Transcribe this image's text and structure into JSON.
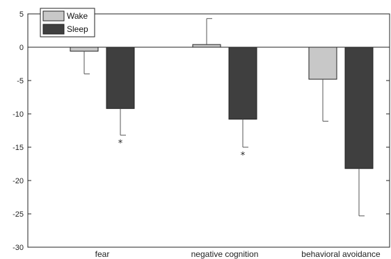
{
  "chart_data": {
    "type": "bar",
    "categories": [
      "fear",
      "negative cognition",
      "behavioral avoidance"
    ],
    "series": [
      {
        "name": "Wake",
        "color": "#c8c8c8",
        "values": [
          -0.6,
          0.4,
          -4.8
        ],
        "error": [
          3.4,
          3.9,
          6.3
        ]
      },
      {
        "name": "Sleep",
        "color": "#3f3f3f",
        "values": [
          -9.2,
          -10.8,
          -18.2
        ],
        "error": [
          4.0,
          4.2,
          7.1
        ]
      }
    ],
    "significance": [
      "*",
      "*",
      ""
    ],
    "ylim": [
      -30,
      5
    ],
    "yticks": [
      5,
      0,
      -5,
      -10,
      -15,
      -20,
      -25,
      -30
    ],
    "legend_position": "top-left",
    "grid": false
  }
}
